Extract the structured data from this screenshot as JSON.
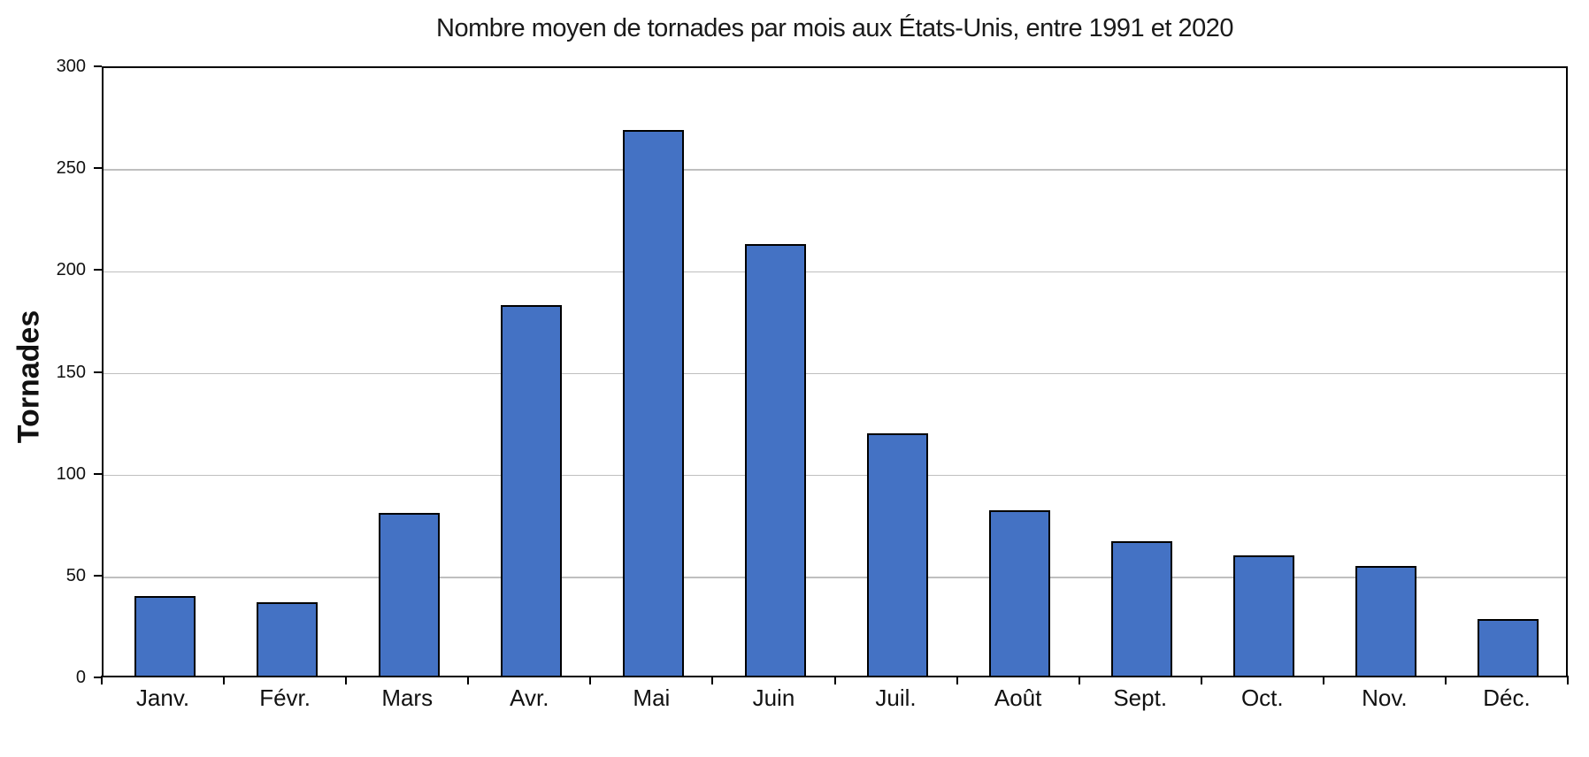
{
  "chart_data": {
    "type": "bar",
    "title": "Nombre moyen de tornades par mois aux États-Unis, entre 1991 et 2020",
    "xlabel": "",
    "ylabel": "Tornades",
    "categories": [
      "Janv.",
      "Févr.",
      "Mars",
      "Avr.",
      "Mai",
      "Juin",
      "Juil.",
      "Août",
      "Sept.",
      "Oct.",
      "Nov.",
      "Déc."
    ],
    "values": [
      39,
      36,
      80,
      182,
      268,
      212,
      119,
      81,
      66,
      59,
      54,
      28
    ],
    "ylim": [
      0,
      300
    ],
    "yticks": [
      0,
      50,
      100,
      150,
      200,
      250,
      300
    ],
    "grid": true,
    "legend": "none",
    "bar_color": "#4472C4",
    "bar_border_color": "#000000",
    "gridline_color": "#BFBFBF",
    "axis_color": "#000000",
    "background_color": "#FFFFFF"
  }
}
